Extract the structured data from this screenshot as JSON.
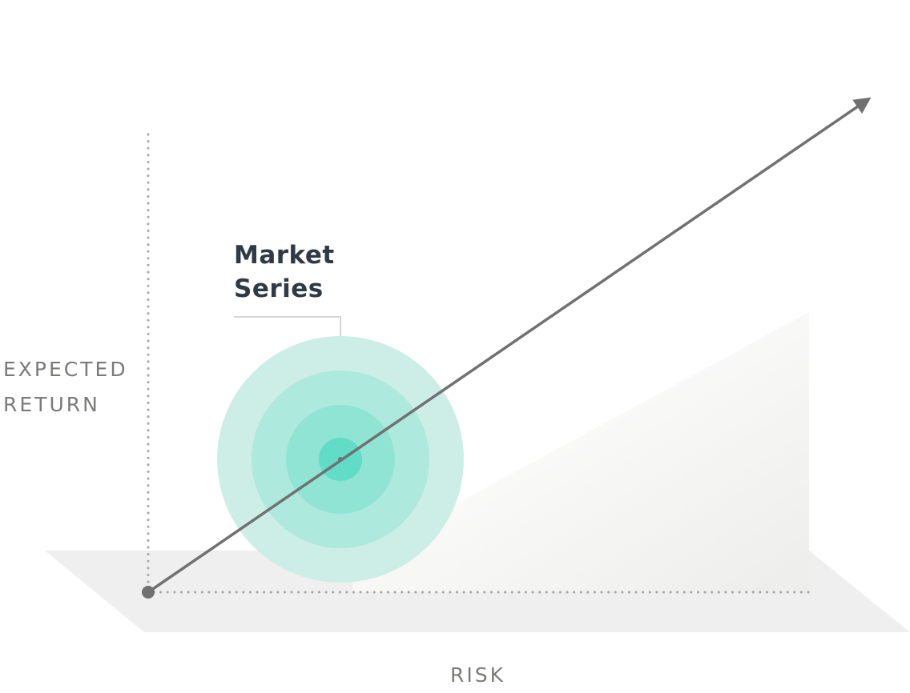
{
  "axes": {
    "y_label_line1": "EXPECTED",
    "y_label_line2": "RETURN",
    "x_label": "RISK"
  },
  "callout": {
    "line1": "Market",
    "line2": "Series"
  },
  "colors": {
    "axis_dots": "#a6a6a6",
    "arrow": "#717171",
    "floor": "#efefef",
    "wall": "#f4f4f2",
    "ring_outer": "#cdeee7",
    "ring_2": "#acE8dc",
    "ring_3": "#8ee4d3",
    "ring_core": "#5fdcc6",
    "title": "#2e3a46",
    "label": "#7a7a78"
  }
}
